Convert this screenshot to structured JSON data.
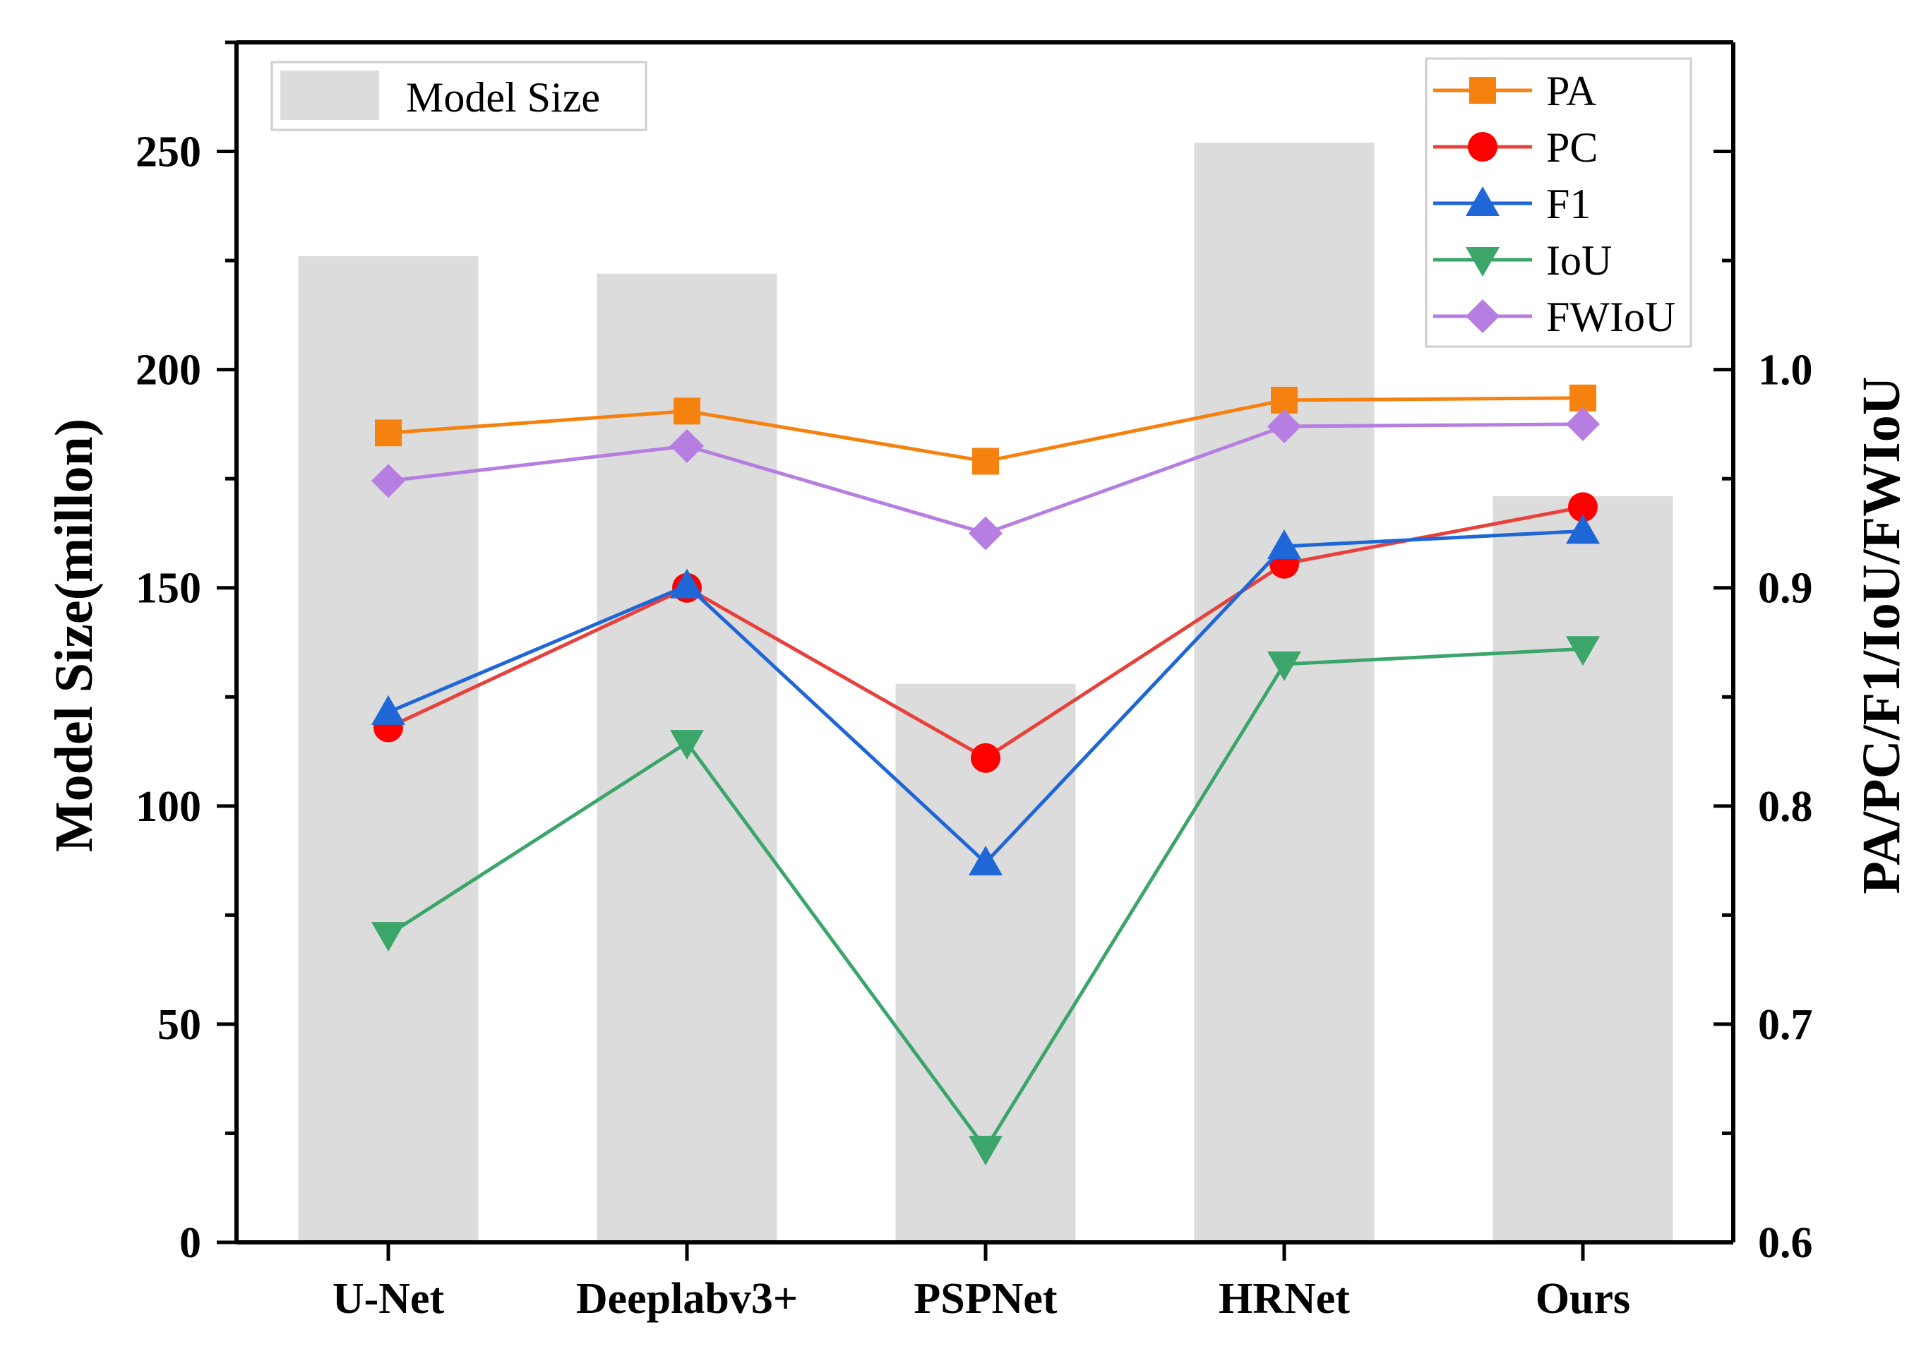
{
  "chart_data": {
    "type": "bar",
    "categories": [
      "U-Net",
      "Deeplabv3+",
      "PSPNet",
      "HRNet",
      "Ours"
    ],
    "bar_series": {
      "name": "Model Size",
      "values": [
        226,
        222,
        128,
        252,
        171
      ],
      "color": "#dcdcdc"
    },
    "line_series": [
      {
        "name": "PA",
        "values": [
          0.971,
          0.981,
          0.958,
          0.986,
          0.987
        ],
        "color": "#f5820f",
        "marker": "square"
      },
      {
        "name": "PC",
        "values": [
          0.836,
          0.9,
          0.822,
          0.911,
          0.937
        ],
        "color": "#e8403a",
        "marker": "circle"
      },
      {
        "name": "F1",
        "values": [
          0.843,
          0.901,
          0.774,
          0.919,
          0.926
        ],
        "color": "#1f66d6",
        "marker": "triangle-up"
      },
      {
        "name": "IoU",
        "values": [
          0.741,
          0.829,
          0.643,
          0.865,
          0.872
        ],
        "color": "#3ba56a",
        "marker": "triangle-down"
      },
      {
        "name": "FWIoU",
        "values": [
          0.949,
          0.965,
          0.925,
          0.974,
          0.975
        ],
        "color": "#b57ee0",
        "marker": "diamond"
      }
    ],
    "ylabel_left": "Model Size(millon)",
    "ylabel_right": "PA/PC/F1/IoU/FWIoU",
    "ylim_left": [
      0,
      275
    ],
    "ylim_right": [
      0.6,
      1.15
    ],
    "yticks_left": [
      "0",
      "50",
      "100",
      "150",
      "200",
      "250"
    ],
    "yticks_right": [
      "0.6",
      "0.7",
      "0.8",
      "0.9",
      "1.0"
    ],
    "legend_bar_position": "top-left",
    "legend_lines_position": "top-right",
    "grid": false
  }
}
